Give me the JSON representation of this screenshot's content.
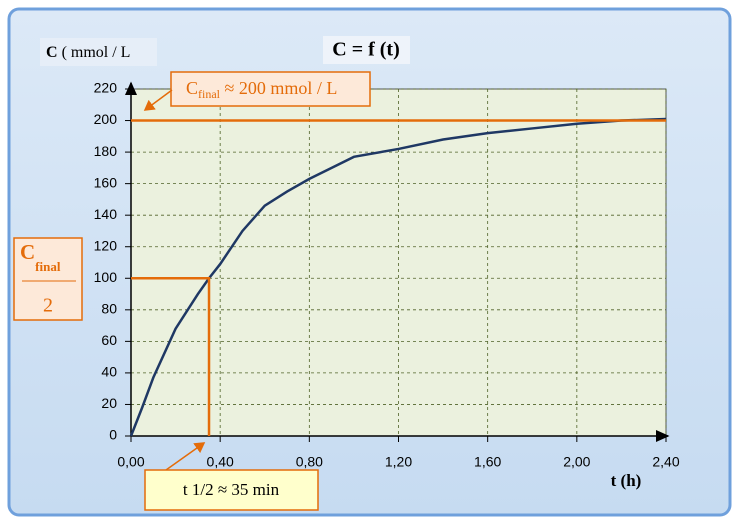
{
  "chart_data": {
    "type": "line",
    "title": "C = f (t)",
    "ylabel_symbol": "C",
    "ylabel_unit": "( mmol / L",
    "xlabel": "t (h)",
    "xlim": [
      0,
      2.4
    ],
    "ylim": [
      0,
      220
    ],
    "xticks": [
      {
        "value": 0,
        "label": "0,00"
      },
      {
        "value": 0.4,
        "label": "0,40"
      },
      {
        "value": 0.8,
        "label": "0,80"
      },
      {
        "value": 1.2,
        "label": "1,20"
      },
      {
        "value": 1.6,
        "label": "1,60"
      },
      {
        "value": 2.0,
        "label": "2,00"
      },
      {
        "value": 2.4,
        "label": "2,40"
      }
    ],
    "yticks": [
      0,
      20,
      40,
      60,
      80,
      100,
      120,
      140,
      160,
      180,
      200,
      220
    ],
    "grid": true,
    "series": [
      {
        "color": "#1f3864",
        "x": [
          0,
          0.05,
          0.1,
          0.2,
          0.3,
          0.35,
          0.4,
          0.5,
          0.6,
          0.7,
          0.8,
          0.9,
          1.0,
          1.2,
          1.4,
          1.6,
          1.8,
          2.0,
          2.2,
          2.4
        ],
        "values": [
          0,
          18,
          37,
          68,
          90,
          100,
          109,
          130,
          146,
          155,
          163,
          170,
          177,
          182,
          188,
          192,
          195,
          198,
          200,
          201
        ]
      },
      {
        "color": "#e46c0a",
        "x": [
          0,
          2.4
        ],
        "values": [
          200,
          200
        ]
      },
      {
        "color": "#e46c0a",
        "x": [
          0,
          0.35,
          0.35
        ],
        "values": [
          100,
          100,
          0
        ]
      }
    ],
    "annotations": {
      "final": {
        "symbol": "C",
        "subscript": "final",
        "text": "≈ 200 mmol / L"
      },
      "half": {
        "symbol": "C",
        "subscript": "final",
        "denominator": "2"
      },
      "half_time": "t 1/2 ≈ 35 min"
    }
  }
}
